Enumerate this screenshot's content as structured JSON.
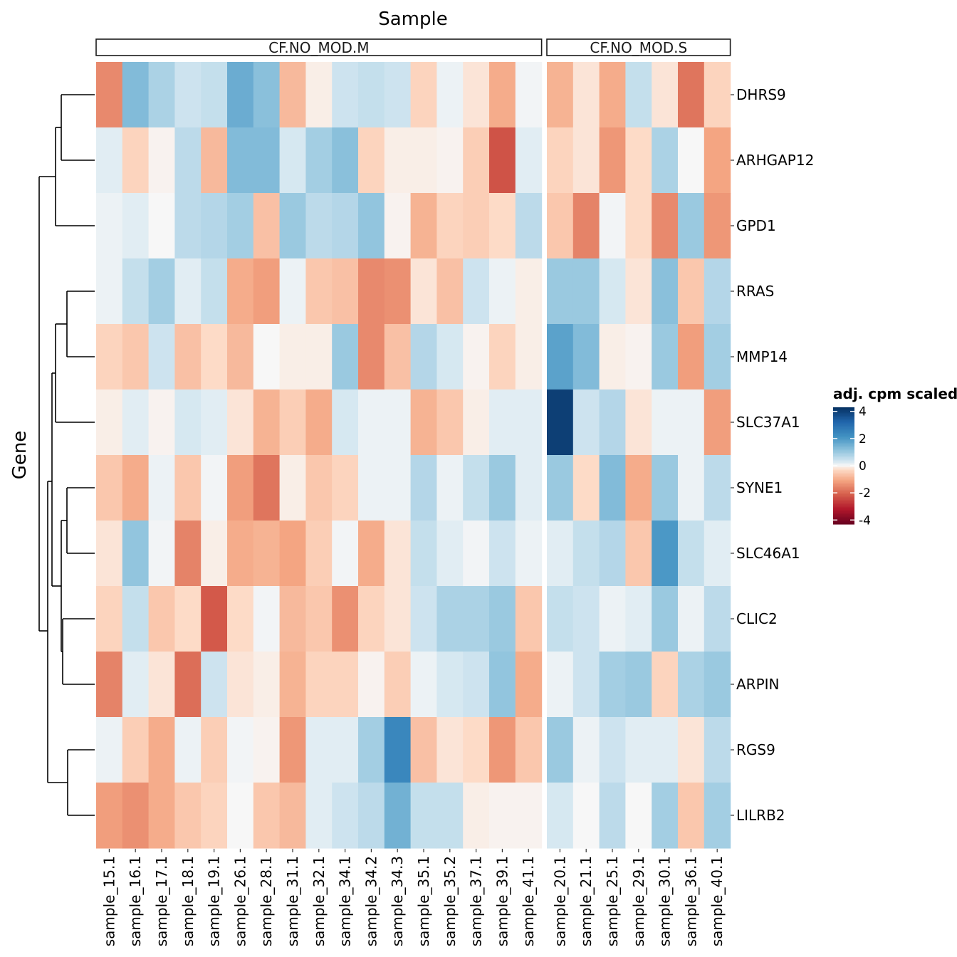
{
  "chart_data": {
    "type": "heatmap",
    "title": "Sample",
    "ylabel": "Gene",
    "panels": [
      {
        "strip": "CF.NO_MOD.M",
        "samples": [
          "sample_15.1",
          "sample_16.1",
          "sample_17.1",
          "sample_18.1",
          "sample_19.1",
          "sample_26.1",
          "sample_28.1",
          "sample_31.1",
          "sample_32.1",
          "sample_34.1",
          "sample_34.2",
          "sample_34.3",
          "sample_35.1",
          "sample_35.2",
          "sample_37.1",
          "sample_39.1",
          "sample_41.1"
        ]
      },
      {
        "strip": "CF.NO_MOD.S",
        "samples": [
          "sample_20.1",
          "sample_21.1",
          "sample_25.1",
          "sample_29.1",
          "sample_30.1",
          "sample_36.1",
          "sample_40.1"
        ]
      }
    ],
    "genes": [
      "DHRS9",
      "ARHGAP12",
      "GPD1",
      "RRAS",
      "MMP14",
      "SLC37A1",
      "SYNE1",
      "SLC46A1",
      "CLIC2",
      "ARPIN",
      "RGS9",
      "LILRB2"
    ],
    "values": [
      [
        -1.5,
        1.3,
        0.8,
        0.4,
        0.5,
        1.6,
        1.2,
        -0.8,
        -0.1,
        0.4,
        0.5,
        0.4,
        -0.4,
        0.1,
        -0.2,
        -1.0,
        0.05,
        -0.9,
        -0.2,
        -1.0,
        0.5,
        -0.2,
        -1.8,
        -0.4
      ],
      [
        0.2,
        -0.4,
        -0.05,
        0.6,
        -0.8,
        1.3,
        1.3,
        0.3,
        0.9,
        1.2,
        -0.4,
        -0.1,
        -0.1,
        -0.05,
        -0.5,
        -2.3,
        0.2,
        -0.4,
        -0.2,
        -1.3,
        -0.3,
        0.8,
        0.0,
        -1.1
      ],
      [
        0.1,
        0.2,
        0.0,
        0.6,
        0.7,
        0.9,
        -0.7,
        1.0,
        0.6,
        0.7,
        1.1,
        -0.05,
        -0.9,
        -0.4,
        -0.5,
        -0.3,
        0.6,
        -0.6,
        -1.6,
        0.05,
        -0.3,
        -1.5,
        1.0,
        -1.3
      ],
      [
        0.1,
        0.5,
        0.9,
        0.2,
        0.5,
        -1.0,
        -1.2,
        0.1,
        -0.6,
        -0.7,
        -1.5,
        -1.4,
        -0.2,
        -0.7,
        0.4,
        0.1,
        -0.1,
        1.0,
        1.0,
        0.3,
        -0.2,
        1.2,
        -0.6,
        0.7
      ],
      [
        -0.4,
        -0.6,
        0.4,
        -0.7,
        -0.3,
        -0.8,
        0.0,
        -0.1,
        -0.1,
        1.0,
        -1.5,
        -0.7,
        0.7,
        0.3,
        -0.05,
        -0.4,
        -0.1,
        1.8,
        1.3,
        -0.1,
        -0.05,
        1.0,
        -1.2,
        0.9
      ],
      [
        -0.1,
        0.2,
        -0.05,
        0.3,
        0.2,
        -0.2,
        -0.9,
        -0.5,
        -1.0,
        0.3,
        0.1,
        0.1,
        -0.9,
        -0.6,
        -0.1,
        0.2,
        0.2,
        4.0,
        0.4,
        0.7,
        -0.2,
        0.1,
        0.1,
        -1.2
      ],
      [
        -0.6,
        -1.0,
        0.1,
        -0.6,
        0.05,
        -1.2,
        -1.8,
        -0.1,
        -0.6,
        -0.4,
        0.1,
        0.1,
        0.7,
        0.1,
        0.5,
        1.0,
        0.2,
        1.0,
        -0.3,
        1.3,
        -1.0,
        1.0,
        0.1,
        0.6
      ],
      [
        -0.2,
        1.1,
        0.05,
        -1.6,
        -0.1,
        -1.0,
        -0.9,
        -1.1,
        -0.5,
        0.05,
        -1.0,
        -0.2,
        0.5,
        0.2,
        0.05,
        0.4,
        0.1,
        0.2,
        0.5,
        0.7,
        -0.6,
        2.0,
        0.5,
        0.2
      ],
      [
        -0.4,
        0.5,
        -0.6,
        -0.3,
        -2.2,
        -0.3,
        0.05,
        -0.8,
        -0.6,
        -1.4,
        -0.4,
        -0.2,
        0.4,
        0.8,
        0.8,
        1.0,
        -0.6,
        0.5,
        0.4,
        0.1,
        0.2,
        1.0,
        0.1,
        0.6
      ],
      [
        -1.6,
        0.2,
        -0.2,
        -1.9,
        0.4,
        -0.2,
        -0.1,
        -0.9,
        -0.4,
        -0.4,
        -0.05,
        -0.5,
        0.1,
        0.3,
        0.4,
        1.1,
        -1.0,
        0.1,
        0.4,
        0.9,
        1.0,
        -0.4,
        0.8,
        1.0
      ],
      [
        0.1,
        -0.5,
        -1.0,
        0.1,
        -0.5,
        0.05,
        -0.05,
        -1.3,
        0.2,
        0.2,
        0.9,
        2.4,
        -0.7,
        -0.2,
        -0.3,
        -1.3,
        -0.6,
        1.0,
        0.1,
        0.4,
        0.2,
        0.2,
        -0.2,
        0.6
      ],
      [
        -1.2,
        -1.4,
        -1.0,
        -0.6,
        -0.4,
        0.0,
        -0.6,
        -0.8,
        0.2,
        0.4,
        0.6,
        1.5,
        0.5,
        0.5,
        -0.1,
        -0.05,
        -0.05,
        0.3,
        0.0,
        0.6,
        0.0,
        0.9,
        -0.6,
        0.9
      ]
    ],
    "legend": {
      "title": "adj. cpm scaled",
      "ticks": [
        4,
        2,
        0,
        -2,
        -4
      ],
      "tick_labels": [
        "4",
        "2",
        "0",
        "-2",
        "-4"
      ],
      "range": [
        -4.3,
        4.3
      ]
    },
    "colors": {
      "low": "#67001f",
      "mid": "#f7f7f7",
      "high": "#053061"
    }
  }
}
